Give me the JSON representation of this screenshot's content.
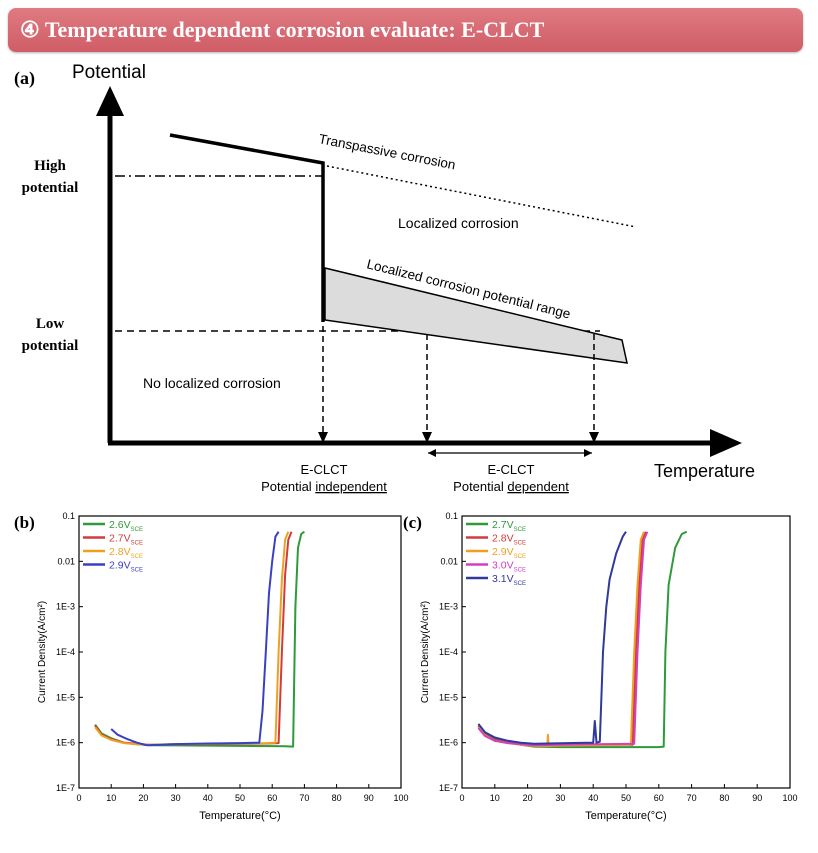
{
  "banner": {
    "title": "④ Temperature dependent corrosion evaluate: E-CLCT"
  },
  "diagram": {
    "panel_label": "(a)",
    "y_axis_label": "Potential",
    "x_axis_label": "Temperature",
    "high_potential": [
      "High",
      "potential"
    ],
    "low_potential": [
      "Low",
      "potential"
    ],
    "region_transpassive": "Transpassive corrosion",
    "region_localized": "Localized corrosion",
    "region_range": "Localized corrosion potential range",
    "region_none": "No localized corrosion",
    "independent_label": [
      "E-CLCT",
      "Potential ",
      "independent"
    ],
    "dependent_label": [
      "E-CLCT",
      "Potential ",
      "dependent"
    ]
  },
  "chart_data": [
    {
      "type": "line",
      "panel_label": "(b)",
      "xlabel": "Temperature(°C)",
      "ylabel": "Current Density(A/cm²)",
      "xlim": [
        0,
        100
      ],
      "x_ticks": [
        "0",
        "10",
        "20",
        "30",
        "40",
        "50",
        "60",
        "70",
        "80",
        "90",
        "100"
      ],
      "y_scale": "log",
      "ylim": [
        1e-07,
        0.1
      ],
      "y_ticks": [
        "0.1",
        "0.01",
        "1E-3",
        "1E-4",
        "1E-5",
        "1E-6",
        "1E-7"
      ],
      "legend_position": "top-left",
      "series": [
        {
          "name": "2.6V",
          "sub": "SCE",
          "color": "#2e9a3a",
          "x": [
            5,
            7,
            10,
            14,
            18,
            22,
            30,
            40,
            50,
            60,
            64,
            66.5,
            67.2,
            68,
            69,
            70
          ],
          "y": [
            2.5e-06,
            1.6e-06,
            1.25e-06,
            1e-06,
            9.2e-07,
            8.8e-07,
            8.7e-07,
            8.6e-07,
            8.5e-07,
            8.4e-07,
            8.3e-07,
            8.2e-07,
            0.001,
            0.02,
            0.04,
            0.045
          ]
        },
        {
          "name": "2.7V",
          "sub": "SCE",
          "color": "#d23b3b",
          "x": [
            5,
            7,
            10,
            14,
            18,
            22,
            30,
            40,
            50,
            58,
            62,
            63,
            64,
            65,
            66
          ],
          "y": [
            2.4e-06,
            1.5e-06,
            1.2e-06,
            1e-06,
            9.5e-07,
            9e-07,
            9.2e-07,
            9.3e-07,
            9.5e-07,
            9.6e-07,
            9.8e-07,
            0.0001,
            0.005,
            0.03,
            0.045
          ]
        },
        {
          "name": "2.8V",
          "sub": "SCE",
          "color": "#f0a020",
          "x": [
            5,
            7,
            10,
            14,
            18,
            22,
            30,
            40,
            50,
            58,
            61,
            62,
            63,
            64,
            65
          ],
          "y": [
            2.2e-06,
            1.45e-06,
            1.15e-06,
            9.8e-07,
            9.2e-07,
            9e-07,
            9.3e-07,
            9.5e-07,
            9.7e-07,
            9.8e-07,
            1e-06,
            0.0001,
            0.004,
            0.03,
            0.045
          ]
        },
        {
          "name": "2.9V",
          "sub": "SCE",
          "color": "#3a40c0",
          "x": [
            10,
            12,
            15,
            18,
            21,
            25,
            30,
            40,
            50,
            56,
            57,
            58,
            59,
            60,
            61,
            62
          ],
          "y": [
            2e-06,
            1.5e-06,
            1.2e-06,
            1e-06,
            8.8e-07,
            9e-07,
            9.3e-07,
            9.6e-07,
            9.8e-07,
            1e-06,
            5e-06,
            0.0001,
            0.002,
            0.01,
            0.035,
            0.045
          ]
        }
      ]
    },
    {
      "type": "line",
      "panel_label": "(c)",
      "xlabel": "Temperature(°C)",
      "ylabel": "Current Density(A/cm²)",
      "xlim": [
        0,
        100
      ],
      "x_ticks": [
        "0",
        "10",
        "20",
        "30",
        "40",
        "50",
        "60",
        "70",
        "80",
        "90",
        "100"
      ],
      "y_scale": "log",
      "ylim": [
        1e-07,
        0.1
      ],
      "y_ticks": [
        "0.1",
        "0.01",
        "1E-3",
        "1E-4",
        "1E-5",
        "1E-6",
        "1E-7"
      ],
      "legend_position": "top-left",
      "series": [
        {
          "name": "2.7V",
          "sub": "SCE",
          "color": "#2e9a3a",
          "x": [
            5,
            7,
            10,
            14,
            18,
            22,
            30,
            40,
            50,
            60,
            61.5,
            62,
            63,
            65,
            67,
            68.5
          ],
          "y": [
            2.4e-06,
            1.6e-06,
            1.2e-06,
            1e-06,
            9e-07,
            8.2e-07,
            8e-07,
            8e-07,
            8e-07,
            8e-07,
            8.2e-07,
            0.0001,
            0.003,
            0.02,
            0.04,
            0.045
          ]
        },
        {
          "name": "2.8V",
          "sub": "SCE",
          "color": "#d23b3b",
          "x": [
            5,
            7,
            10,
            14,
            18,
            22,
            30,
            40,
            50,
            52,
            53,
            54,
            55,
            56
          ],
          "y": [
            2.3e-06,
            1.5e-06,
            1.15e-06,
            1e-06,
            9.2e-07,
            8.5e-07,
            8.6e-07,
            8.8e-07,
            9e-07,
            9e-07,
            0.0001,
            0.003,
            0.03,
            0.045
          ]
        },
        {
          "name": "2.9V",
          "sub": "SCE",
          "color": "#f0a020",
          "x": [
            5,
            7,
            10,
            14,
            18,
            22,
            26,
            26.2,
            26.4,
            30,
            40,
            50,
            51.5,
            52.5,
            53.5,
            54.5,
            55.5
          ],
          "y": [
            2.2e-06,
            1.45e-06,
            1.1e-06,
            9.8e-07,
            9e-07,
            8.5e-07,
            8.5e-07,
            1.5e-06,
            8.5e-07,
            8.6e-07,
            8.8e-07,
            9e-07,
            9.2e-07,
            0.0001,
            0.003,
            0.03,
            0.045
          ]
        },
        {
          "name": "3.0V",
          "sub": "SCE",
          "color": "#d040c0",
          "x": [
            5,
            7,
            10,
            14,
            18,
            22,
            30,
            40,
            50,
            52.5,
            53.5,
            54.5,
            55.5,
            56.5
          ],
          "y": [
            2.1e-06,
            1.4e-06,
            1.1e-06,
            9.8e-07,
            9.2e-07,
            8.8e-07,
            9e-07,
            9.2e-07,
            9.4e-07,
            9.5e-07,
            0.0001,
            0.003,
            0.03,
            0.045
          ]
        },
        {
          "name": "3.1V",
          "sub": "SCE",
          "color": "#303a9c",
          "x": [
            5,
            7,
            10,
            14,
            18,
            22,
            30,
            38,
            40,
            40.5,
            41,
            42,
            42.5,
            43,
            44,
            45,
            47,
            49,
            50
          ],
          "y": [
            2.6e-06,
            1.7e-06,
            1.3e-06,
            1.1e-06,
            1e-06,
            9.5e-07,
            9.7e-07,
            1e-06,
            1e-06,
            3e-06,
            1e-06,
            1.05e-06,
            1e-05,
            0.0001,
            0.001,
            0.004,
            0.015,
            0.035,
            0.045
          ]
        }
      ]
    }
  ]
}
